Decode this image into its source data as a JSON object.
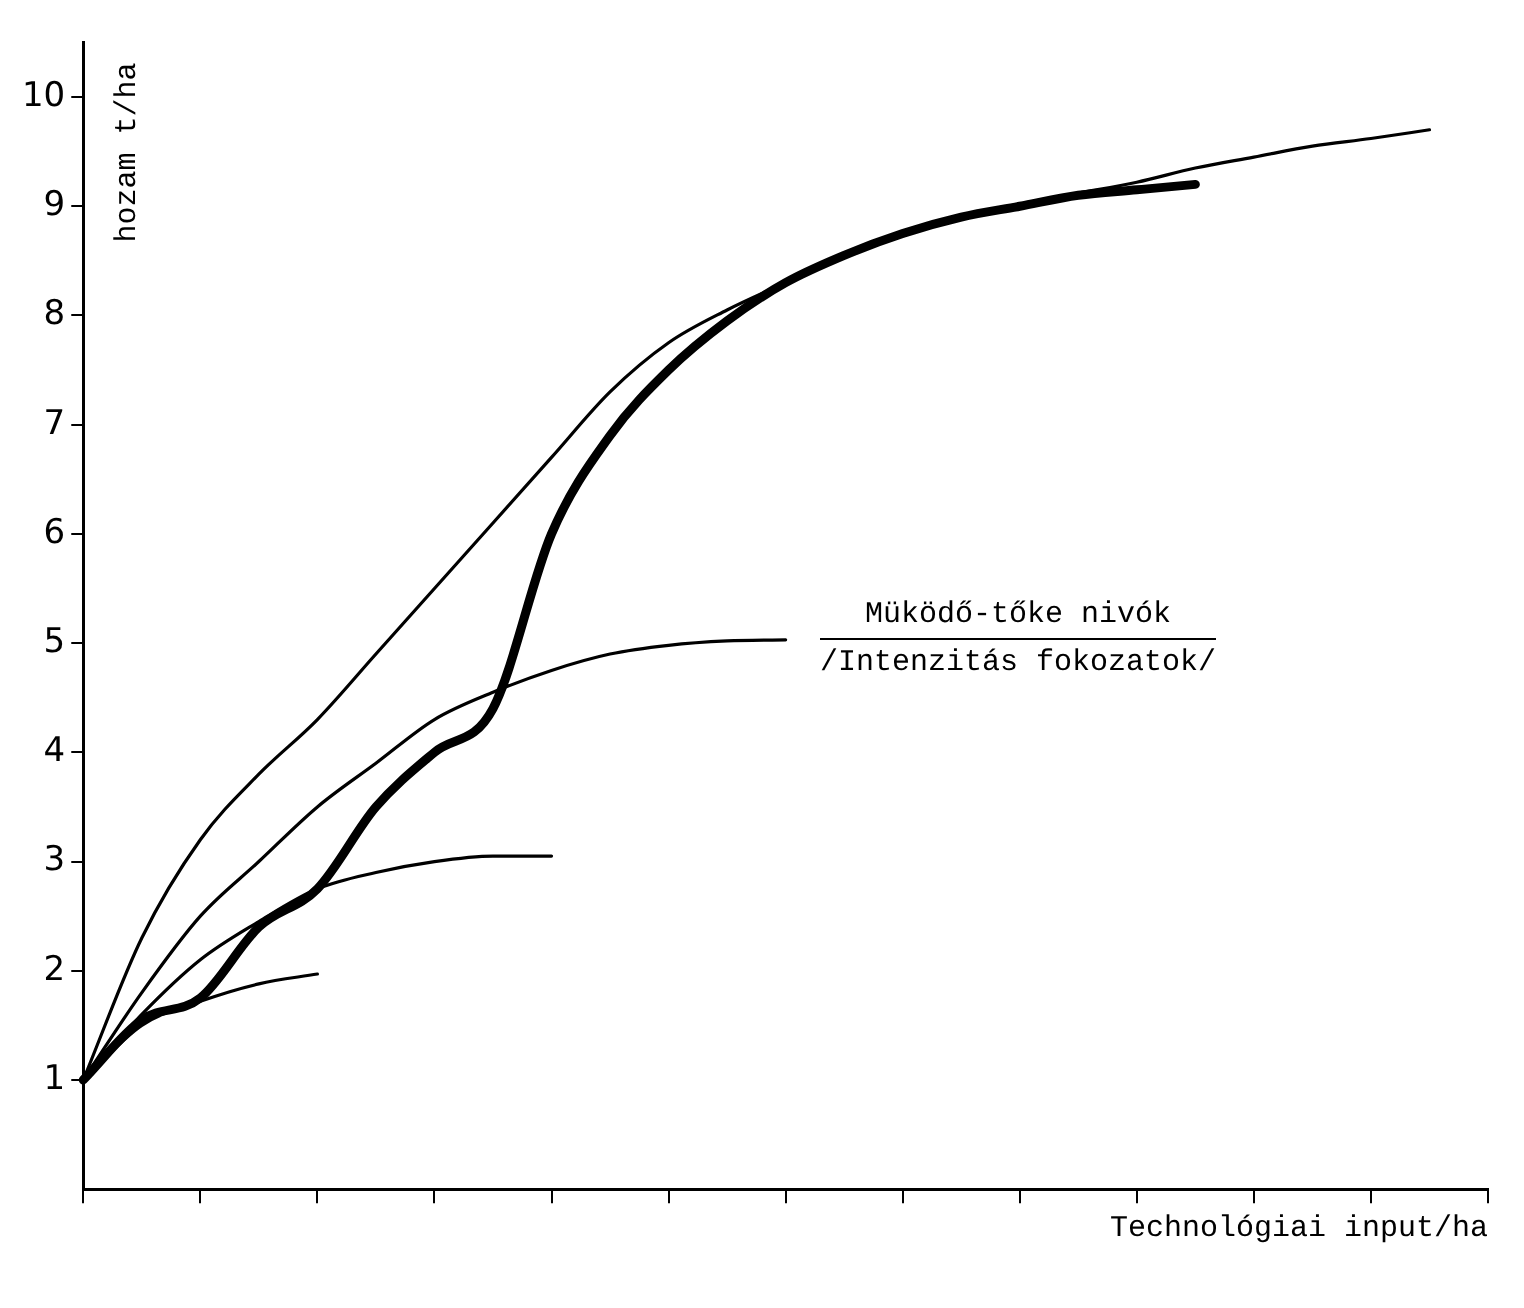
{
  "chart_data": {
    "type": "line",
    "xlabel": "Technológiai input/ha",
    "ylabel": "hozam t/ha",
    "categories": [
      null,
      null,
      null,
      null,
      null,
      null,
      null,
      null,
      null,
      null,
      null,
      null,
      null,
      null,
      null,
      null,
      null,
      null,
      null,
      null,
      null,
      null,
      null,
      null,
      null
    ],
    "series": [
      {
        "color": "#000000",
        "values": [
          1.0,
          2.3,
          3.2,
          3.8,
          4.3,
          4.9,
          5.5,
          6.1,
          6.7,
          7.3,
          7.75,
          8.05,
          8.3,
          8.55,
          8.75,
          8.9,
          9.02,
          9.12,
          9.22,
          9.35,
          9.45,
          9.55,
          9.62,
          9.7,
          null
        ]
      },
      {
        "color": "#000000",
        "values": [
          1.0,
          1.8,
          2.5,
          3.0,
          3.5,
          3.9,
          4.3,
          4.55,
          4.75,
          4.9,
          4.98,
          5.02,
          5.03,
          null,
          null,
          null,
          null,
          null,
          null,
          null,
          null,
          null,
          null,
          null,
          null
        ]
      },
      {
        "color": "#000000",
        "values": [
          1.0,
          1.6,
          2.1,
          2.45,
          2.75,
          2.9,
          3.0,
          3.05,
          3.05,
          null,
          null,
          null,
          null,
          null,
          null,
          null,
          null,
          null,
          null,
          null,
          null,
          null,
          null,
          null,
          null
        ]
      },
      {
        "color": "#000000",
        "values": [
          1.0,
          1.5,
          1.72,
          1.88,
          1.97,
          null,
          null,
          null,
          null,
          null,
          null,
          null,
          null,
          null,
          null,
          null,
          null,
          null,
          null,
          null,
          null,
          null,
          null,
          null,
          null
        ]
      },
      {
        "color": "#000000",
        "values": [
          1.0,
          1.55,
          1.75,
          2.4,
          2.75,
          3.5,
          4.0,
          4.4,
          6.0,
          6.9,
          7.5,
          7.95,
          8.3,
          8.55,
          8.75,
          8.9,
          9.0,
          9.1,
          9.15,
          9.2,
          null,
          null,
          null,
          null,
          null
        ]
      }
    ],
    "ylim": [
      0,
      10.5
    ],
    "yticks": [
      1,
      2,
      3,
      4,
      5,
      6,
      7,
      8,
      9,
      10
    ],
    "annotations": [
      "Müködő-tőke nivók",
      "/Intenzitás fokozatok/"
    ],
    "grid": false,
    "legend": false,
    "marker": "none",
    "line_style": "solid"
  }
}
